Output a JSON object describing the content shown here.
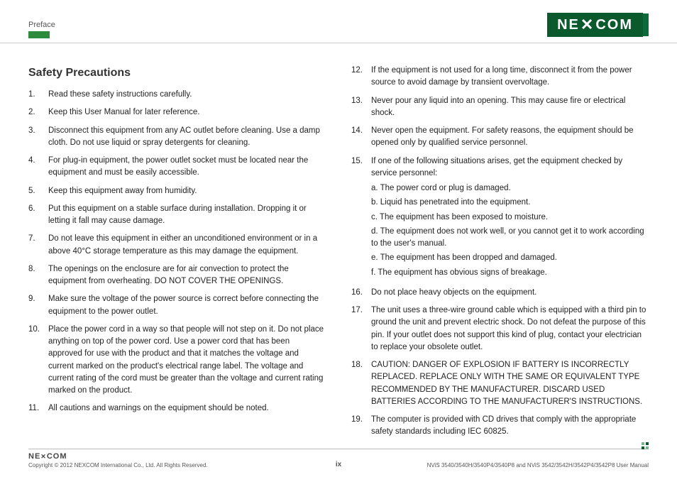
{
  "header": {
    "section": "Preface",
    "logo_text": "NE COM",
    "logo_bg": "#0a5a2e"
  },
  "title": "Safety Precautions",
  "left_items": [
    {
      "n": "1.",
      "t": "Read these safety instructions carefully."
    },
    {
      "n": "2.",
      "t": "Keep this User Manual for later reference."
    },
    {
      "n": "3.",
      "t": "Disconnect this equipment from any AC outlet before cleaning. Use a damp cloth. Do not use liquid or spray detergents for cleaning."
    },
    {
      "n": "4.",
      "t": "For plug-in equipment, the power outlet socket must be located near the equipment and must be easily accessible."
    },
    {
      "n": "5.",
      "t": "Keep this equipment away from humidity."
    },
    {
      "n": "6.",
      "t": "Put this equipment on a stable surface during installation. Dropping it or letting it fall may cause damage."
    },
    {
      "n": "7.",
      "t": "Do not leave this equipment in either an unconditioned environment or in a above 40°C storage temperature as this may damage the equipment."
    },
    {
      "n": "8.",
      "t": "The openings on the enclosure are for air convection to protect the equipment from overheating. DO NOT COVER THE OPENINGS."
    },
    {
      "n": "9.",
      "t": "Make sure the voltage of the power source is correct before connecting the equipment to the power outlet."
    },
    {
      "n": "10.",
      "t": "Place the power cord in a way so that people will not step on it. Do not place anything on top of the power cord. Use a power cord that has been approved for use with the product and that it matches the voltage and current marked on the product's electrical range label. The voltage and current rating of the cord must be greater than the voltage and current rating marked on the product."
    },
    {
      "n": "11.",
      "t": "All cautions and warnings on the equipment should be noted."
    }
  ],
  "right_items": [
    {
      "n": "12.",
      "t": "If the equipment is not used for a long time, disconnect it from the power source to avoid damage by transient overvoltage."
    },
    {
      "n": "13.",
      "t": "Never pour any liquid into an opening. This may cause fire or electrical shock."
    },
    {
      "n": "14.",
      "t": "Never open the equipment. For safety reasons, the equipment should be opened only by qualified service personnel."
    },
    {
      "n": "15.",
      "t": "If one of the following situations arises, get the equipment checked by service personnel:",
      "sub": [
        "a. The power cord or plug is damaged.",
        "b. Liquid has penetrated into the equipment.",
        "c. The equipment has been exposed to moisture.",
        "d. The equipment does not work well, or you cannot get it to work according to the user's manual.",
        "e. The equipment has been dropped and damaged.",
        "f. The equipment has obvious signs of breakage."
      ]
    },
    {
      "n": "16.",
      "t": "Do not place heavy objects on the equipment."
    },
    {
      "n": "17.",
      "t": "The unit uses a three-wire ground cable which is equipped with a third pin to ground the unit and prevent electric shock. Do not defeat the purpose of this pin. If your outlet does not support this kind of plug, contact your electrician to replace your obsolete outlet."
    },
    {
      "n": "18.",
      "t": "CAUTION: DANGER OF EXPLOSION IF BATTERY IS INCORRECTLY REPLACED. REPLACE ONLY WITH THE SAME OR EQUIVALENT TYPE RECOMMENDED BY THE MANUFACTURER. DISCARD USED BATTERIES ACCORDING TO THE MANUFACTURER'S INSTRUCTIONS."
    },
    {
      "n": "19.",
      "t": "The computer is provided with CD drives that comply with the appropriate safety standards including IEC 60825."
    }
  ],
  "footer": {
    "logo": "NE COM",
    "copyright": "Copyright © 2012 NEXCOM International Co., Ltd. All Rights Reserved.",
    "page": "ix",
    "manual": "NViS 3540/3540H/3540P4/3540P8 and NViS 3542/3542H/3542P4/3542P8 User Manual"
  }
}
